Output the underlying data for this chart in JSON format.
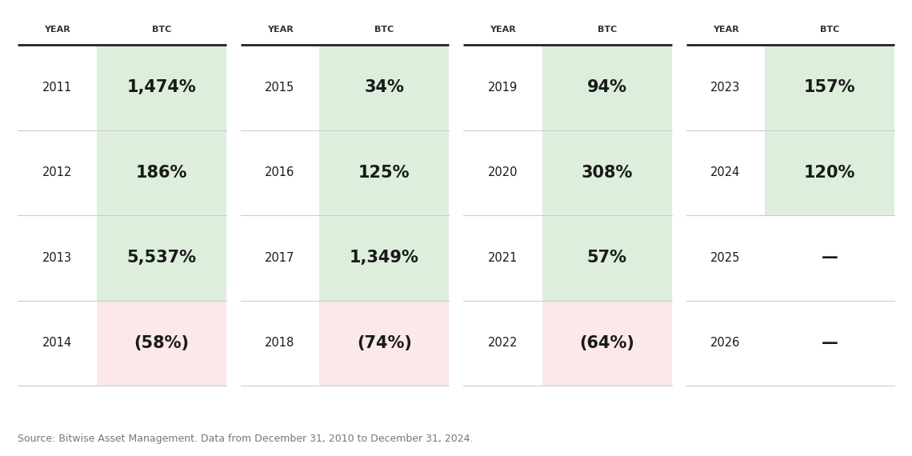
{
  "background_color": "#ffffff",
  "source_text": "Source: Bitwise Asset Management. Data from December 31, 2010 to December 31, 2024.",
  "header_label_year": "YEAR",
  "header_label_btc": "BTC",
  "green_bg": "#ddeedd",
  "red_bg": "#fce8e8",
  "text_color": "#1a1a1a",
  "header_color": "#333333",
  "divider_color": "#cccccc",
  "header_line_color": "#222222",
  "groups": [
    {
      "rows": [
        {
          "year": "2011",
          "btc": "1,474%",
          "positive": true
        },
        {
          "year": "2012",
          "btc": "186%",
          "positive": true
        },
        {
          "year": "2013",
          "btc": "5,537%",
          "positive": true
        },
        {
          "year": "2014",
          "btc": "(58%)",
          "positive": false
        }
      ]
    },
    {
      "rows": [
        {
          "year": "2015",
          "btc": "34%",
          "positive": true
        },
        {
          "year": "2016",
          "btc": "125%",
          "positive": true
        },
        {
          "year": "2017",
          "btc": "1,349%",
          "positive": true
        },
        {
          "year": "2018",
          "btc": "(74%)",
          "positive": false
        }
      ]
    },
    {
      "rows": [
        {
          "year": "2019",
          "btc": "94%",
          "positive": true
        },
        {
          "year": "2020",
          "btc": "308%",
          "positive": true
        },
        {
          "year": "2021",
          "btc": "57%",
          "positive": true
        },
        {
          "year": "2022",
          "btc": "(64%)",
          "positive": false
        }
      ]
    },
    {
      "rows": [
        {
          "year": "2023",
          "btc": "157%",
          "positive": true
        },
        {
          "year": "2024",
          "btc": "120%",
          "positive": true
        },
        {
          "year": "2025",
          "btc": "—",
          "positive": null
        },
        {
          "year": "2026",
          "btc": "—",
          "positive": null
        }
      ]
    }
  ],
  "fig_width": 11.4,
  "fig_height": 5.7,
  "dpi": 100
}
